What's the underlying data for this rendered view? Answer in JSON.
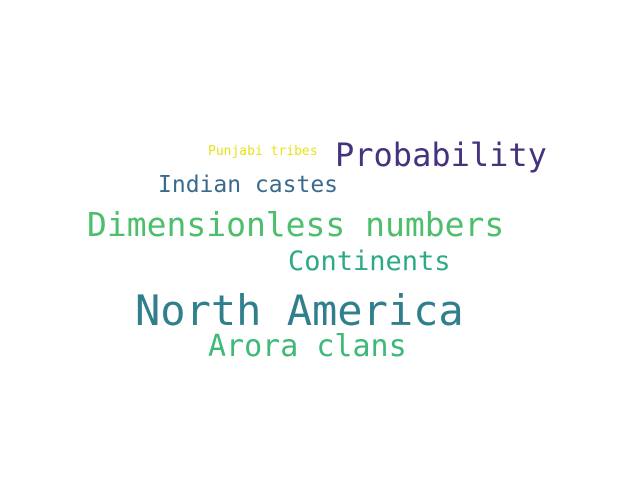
{
  "words": [
    {
      "text": "Probability",
      "color": "#46337e"
    },
    {
      "text": "Punjabi tribes",
      "color": "#e5e419"
    },
    {
      "text": "Indian castes",
      "color": "#3b6b8c"
    },
    {
      "text": "Dimensionless numbers",
      "color": "#4dbf6c"
    },
    {
      "text": "Continents",
      "color": "#2ea988"
    },
    {
      "text": "North America",
      "color": "#2f7f8c"
    },
    {
      "text": "Arora clans",
      "color": "#3fb979"
    }
  ]
}
